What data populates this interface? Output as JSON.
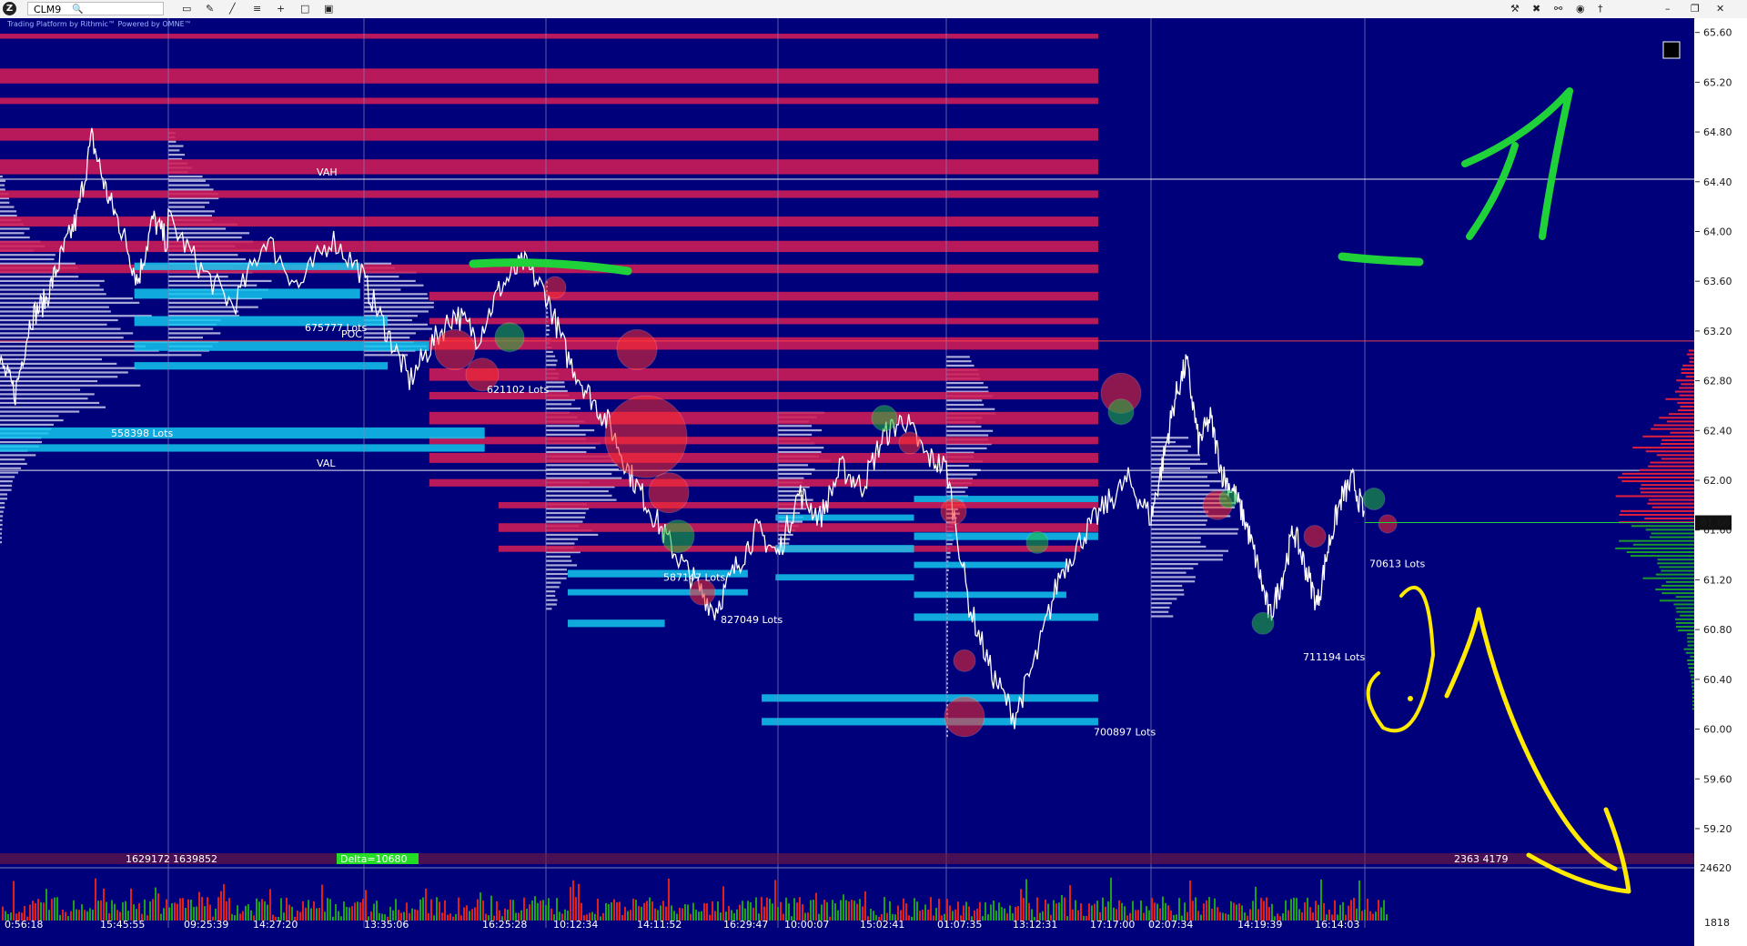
{
  "toolbar": {
    "logo_label": "Z",
    "symbol": "CLM9",
    "search_icon": "search-icon",
    "tools_left": [
      "monitor-icon",
      "pencil-icon",
      "line-chart-icon",
      "bar-settings-icon",
      "crosshair-plus-icon",
      "window-icon",
      "layout-icon"
    ],
    "tools_right": [
      "wrench-icon",
      "cursor-icon",
      "link-icon",
      "camera-icon",
      "pin-icon",
      "minimize-icon",
      "restore-icon",
      "close-icon"
    ],
    "watermark": "Trading Platform by Rithmic™ Powered by OMNE™"
  },
  "colors": {
    "background": "#00007a",
    "supply_zone": "#d11c55",
    "demand_zone": "#13c7ee",
    "price_line": "#ffffff",
    "profile": "#c8c8ea",
    "volume_up": "#1aa31a",
    "volume_down": "#e01f1f",
    "annotation_green": "#1fd23a",
    "annotation_yellow": "#ffea00",
    "axis_bg": "#ffffff",
    "current_price_bg": "#111111"
  },
  "chart_data": {
    "type": "line",
    "symbol": "CLM9",
    "price_ylim": [
      58.9,
      65.7
    ],
    "price_ticks": [
      "65.60",
      "65.20",
      "64.80",
      "64.40",
      "64.00",
      "63.60",
      "63.20",
      "62.80",
      "62.40",
      "62.00",
      "61.60",
      "61.20",
      "60.80",
      "60.40",
      "60.00",
      "59.60",
      "59.20"
    ],
    "volume_axis_label": "24620",
    "volume_axis_label2": "1818",
    "current_price": "61.66",
    "time_ticks": [
      "0:56:18",
      "15:45:55",
      "09:25:39",
      "14:27:20",
      "13:35:06",
      "16:25:28",
      "10:12:34",
      "14:11:52",
      "16:29:47",
      "10:00:07",
      "15:02:41",
      "01:07:35",
      "13:12:31",
      "17:17:00",
      "02:07:34",
      "14:19:39",
      "16:14:03"
    ],
    "profile_markers": [
      {
        "name": "VAH",
        "price": 64.42
      },
      {
        "name": "VAL",
        "price": 62.08
      },
      {
        "name": "POC",
        "price": 63.12
      }
    ],
    "lots_labels": [
      {
        "text": "675777 Lots",
        "price": 63.23
      },
      {
        "text": "558398 Lots",
        "price": 62.38
      },
      {
        "text": "621102 Lots",
        "price": 62.73
      },
      {
        "text": "827049 Lots",
        "price": 60.88
      },
      {
        "text": "587147 Lots",
        "price": 61.22
      },
      {
        "text": "700897 Lots",
        "price": 59.98
      },
      {
        "text": "711194 Lots",
        "price": 60.58
      },
      {
        "text": "70613 Lots",
        "price": 61.33
      }
    ],
    "session_prices": [
      [
        62.95,
        62.7,
        63.3,
        63.45,
        63.8,
        64.1,
        64.75,
        64.3,
        64.0,
        63.6,
        64.1,
        63.9
      ],
      [
        64.1,
        63.7,
        63.4,
        63.95,
        63.55,
        63.95,
        63.65
      ],
      [
        63.6,
        63.2,
        62.8,
        63.1,
        63.35,
        63.15,
        63.55,
        63.75,
        63.5
      ],
      [
        63.5,
        63.0,
        62.7,
        62.45,
        62.05,
        61.75,
        61.45,
        61.2,
        60.95,
        61.3,
        61.6,
        61.4
      ],
      [
        61.4,
        61.9,
        61.7,
        62.1,
        61.95,
        62.35,
        62.5,
        62.2,
        62.1
      ],
      [
        62.1,
        61.0,
        60.45,
        60.1,
        60.6,
        61.25,
        61.55,
        61.8,
        62.0,
        61.7
      ],
      [
        61.7,
        62.15,
        62.65,
        62.95,
        62.3,
        62.5,
        62.05,
        61.9,
        61.65,
        61.3,
        60.9,
        61.2,
        61.6,
        61.3,
        61.0,
        61.5,
        61.85,
        62.0,
        61.7
      ]
    ],
    "supply_zones": [
      {
        "price": 65.57,
        "x0": 0.0,
        "x1": 0.793,
        "h": 0.04
      },
      {
        "price": 65.25,
        "x0": 0.0,
        "x1": 0.793,
        "h": 0.12
      },
      {
        "price": 65.05,
        "x0": 0.0,
        "x1": 0.793,
        "h": 0.05
      },
      {
        "price": 64.78,
        "x0": 0.0,
        "x1": 0.793,
        "h": 0.1
      },
      {
        "price": 64.52,
        "x0": 0.0,
        "x1": 0.793,
        "h": 0.12
      },
      {
        "price": 64.3,
        "x0": 0.0,
        "x1": 0.793,
        "h": 0.06
      },
      {
        "price": 64.08,
        "x0": 0.0,
        "x1": 0.793,
        "h": 0.08
      },
      {
        "price": 63.88,
        "x0": 0.0,
        "x1": 0.793,
        "h": 0.09
      },
      {
        "price": 63.7,
        "x0": 0.0,
        "x1": 0.793,
        "h": 0.07
      },
      {
        "price": 63.48,
        "x0": 0.31,
        "x1": 0.793,
        "h": 0.07
      },
      {
        "price": 63.28,
        "x0": 0.31,
        "x1": 0.793,
        "h": 0.05
      },
      {
        "price": 63.1,
        "x0": 0.31,
        "x1": 0.793,
        "h": 0.1
      },
      {
        "price": 62.85,
        "x0": 0.31,
        "x1": 0.793,
        "h": 0.1
      },
      {
        "price": 62.68,
        "x0": 0.31,
        "x1": 0.793,
        "h": 0.06
      },
      {
        "price": 62.5,
        "x0": 0.31,
        "x1": 0.793,
        "h": 0.1
      },
      {
        "price": 62.32,
        "x0": 0.31,
        "x1": 0.793,
        "h": 0.06
      },
      {
        "price": 62.18,
        "x0": 0.31,
        "x1": 0.793,
        "h": 0.08
      },
      {
        "price": 61.98,
        "x0": 0.31,
        "x1": 0.793,
        "h": 0.06
      },
      {
        "price": 61.8,
        "x0": 0.36,
        "x1": 0.793,
        "h": 0.05
      },
      {
        "price": 61.62,
        "x0": 0.36,
        "x1": 0.793,
        "h": 0.07
      },
      {
        "price": 61.45,
        "x0": 0.36,
        "x1": 0.78,
        "h": 0.05
      }
    ],
    "demand_zones": [
      {
        "price": 63.72,
        "x0": 0.097,
        "x1": 0.26,
        "h": 0.06
      },
      {
        "price": 63.5,
        "x0": 0.097,
        "x1": 0.26,
        "h": 0.08
      },
      {
        "price": 63.28,
        "x0": 0.097,
        "x1": 0.28,
        "h": 0.08
      },
      {
        "price": 63.08,
        "x0": 0.097,
        "x1": 0.31,
        "h": 0.08
      },
      {
        "price": 62.92,
        "x0": 0.097,
        "x1": 0.28,
        "h": 0.06
      },
      {
        "price": 62.38,
        "x0": 0.0,
        "x1": 0.35,
        "h": 0.09
      },
      {
        "price": 62.26,
        "x0": 0.0,
        "x1": 0.35,
        "h": 0.06
      },
      {
        "price": 61.25,
        "x0": 0.41,
        "x1": 0.54,
        "h": 0.06
      },
      {
        "price": 61.1,
        "x0": 0.41,
        "x1": 0.54,
        "h": 0.05
      },
      {
        "price": 61.7,
        "x0": 0.56,
        "x1": 0.66,
        "h": 0.05
      },
      {
        "price": 61.45,
        "x0": 0.56,
        "x1": 0.66,
        "h": 0.06
      },
      {
        "price": 61.22,
        "x0": 0.56,
        "x1": 0.66,
        "h": 0.05
      },
      {
        "price": 60.85,
        "x0": 0.41,
        "x1": 0.48,
        "h": 0.06
      },
      {
        "price": 60.25,
        "x0": 0.55,
        "x1": 0.793,
        "h": 0.06
      },
      {
        "price": 60.06,
        "x0": 0.55,
        "x1": 0.793,
        "h": 0.06
      },
      {
        "price": 61.85,
        "x0": 0.66,
        "x1": 0.793,
        "h": 0.05
      },
      {
        "price": 61.55,
        "x0": 0.66,
        "x1": 0.793,
        "h": 0.06
      },
      {
        "price": 61.32,
        "x0": 0.66,
        "x1": 0.77,
        "h": 0.05
      },
      {
        "price": 61.08,
        "x0": 0.66,
        "x1": 0.77,
        "h": 0.05
      },
      {
        "price": 60.9,
        "x0": 0.66,
        "x1": 0.793,
        "h": 0.06
      }
    ],
    "volume_summary": {
      "sell_volume": "1629172",
      "buy_volume": "1639852",
      "delta": "Delta=10680",
      "right_volume": "2363 4179"
    }
  }
}
